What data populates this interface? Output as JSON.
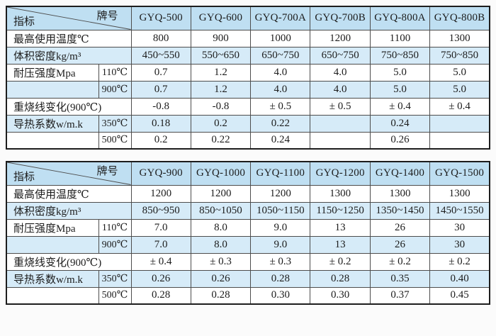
{
  "colors": {
    "header_fill": "#bfdff2",
    "row_fill": "#d6ebf8",
    "grid_line": "#4d4d4d",
    "frame": "#1d1d1d",
    "text": "#1c1c1c",
    "page_background": "#fbfbfb"
  },
  "tables": [
    {
      "corner": {
        "top_right": "牌号",
        "bottom_left": "指标"
      },
      "columns": [
        "GYQ-500",
        "GYQ-600",
        "GYQ-700A",
        "GYQ-700B",
        "GYQ-800A",
        "GYQ-800B"
      ],
      "rows": [
        {
          "label": "最高使用温度℃",
          "sub": "",
          "values": [
            "800",
            "900",
            "1000",
            "1200",
            "1100",
            "1300"
          ]
        },
        {
          "label": "体积密度kg/m³",
          "sub": "",
          "values": [
            "450~550",
            "550~650",
            "650~750",
            "650~750",
            "750~850",
            "750~850"
          ]
        },
        {
          "label": "耐压强度Mpa",
          "sub": "110℃",
          "values": [
            "0.7",
            "1.2",
            "4.0",
            "4.0",
            "5.0",
            "5.0"
          ]
        },
        {
          "label": "",
          "sub": "900℃",
          "values": [
            "0.7",
            "1.2",
            "4.0",
            "4.0",
            "5.0",
            "5.0"
          ]
        },
        {
          "label": "重烧线变化(900℃)",
          "sub": "",
          "values": [
            "-0.8",
            "-0.8",
            "± 0.5",
            "± 0.5",
            "± 0.4",
            "± 0.4"
          ]
        },
        {
          "label": "导热系数w/m.k",
          "sub": "350℃",
          "values": [
            "0.18",
            "0.2",
            "0.22",
            "",
            "0.24",
            ""
          ]
        },
        {
          "label": "",
          "sub": "500℃",
          "values": [
            "0.2",
            "0.22",
            "0.24",
            "",
            "0.26",
            ""
          ]
        }
      ]
    },
    {
      "corner": {
        "top_right": "牌号",
        "bottom_left": "指标"
      },
      "columns": [
        "GYQ-900",
        "GYQ-1000",
        "GYQ-1100",
        "GYQ-1200",
        "GYQ-1400",
        "GYQ-1500"
      ],
      "rows": [
        {
          "label": "最高使用温度℃",
          "sub": "",
          "values": [
            "1200",
            "1200",
            "1200",
            "1300",
            "1300",
            "1300"
          ]
        },
        {
          "label": "体积密度kg/m³",
          "sub": "",
          "values": [
            "850~950",
            "850~1050",
            "1050~1150",
            "1150~1250",
            "1350~1450",
            "1450~1550"
          ]
        },
        {
          "label": "耐压强度Mpa",
          "sub": "110℃",
          "values": [
            "7.0",
            "8.0",
            "9.0",
            "13",
            "26",
            "30"
          ]
        },
        {
          "label": "",
          "sub": "900℃",
          "values": [
            "7.0",
            "8.0",
            "9.0",
            "13",
            "26",
            "30"
          ]
        },
        {
          "label": "重烧线变化(900℃)",
          "sub": "",
          "values": [
            "± 0.4",
            "± 0.3",
            "± 0.3",
            "± 0.2",
            "± 0.2",
            "± 0.2"
          ]
        },
        {
          "label": "导热系数w/m.k",
          "sub": "350℃",
          "values": [
            "0.26",
            "0.26",
            "0.28",
            "0.28",
            "0.35",
            "0.40"
          ]
        },
        {
          "label": "",
          "sub": "500℃",
          "values": [
            "0.28",
            "0.28",
            "0.30",
            "0.30",
            "0.37",
            "0.45"
          ]
        }
      ]
    }
  ]
}
